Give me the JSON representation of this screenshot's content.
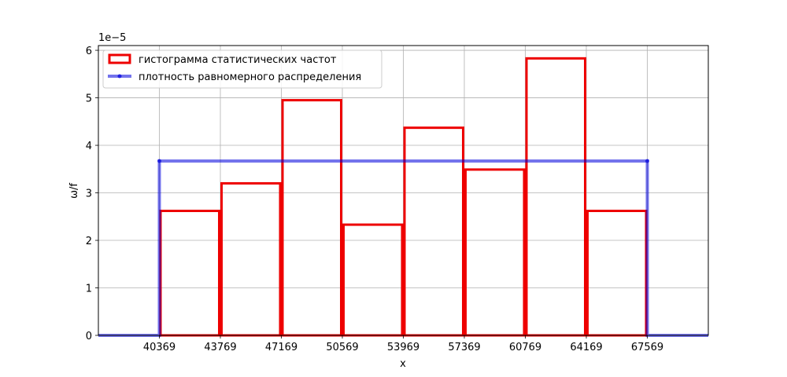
{
  "chart_data": {
    "type": "bar",
    "xlabel": "x",
    "ylabel": "ω/f",
    "y_offset_label": "1e−5",
    "xlim": [
      36969,
      70969
    ],
    "ylim": [
      0,
      6.1e-05
    ],
    "grid": true,
    "legend_placement": "top-left",
    "x_ticks": [
      "40369",
      "43769",
      "47169",
      "50569",
      "53969",
      "57369",
      "60769",
      "64169",
      "67569"
    ],
    "y_ticks": [
      "0",
      "1",
      "2",
      "3",
      "4",
      "5",
      "6"
    ],
    "series": [
      {
        "name": "гистограмма статистических частот",
        "kind": "histogram",
        "color": "#ee0000",
        "bin_edges": [
          40369,
          43769,
          47169,
          50569,
          53969,
          57369,
          60769,
          64169,
          67569
        ],
        "values": [
          2.62e-05,
          3.2e-05,
          4.95e-05,
          2.33e-05,
          4.37e-05,
          3.49e-05,
          5.83e-05,
          2.62e-05
        ]
      },
      {
        "name": "плотность равномерного распределения",
        "kind": "step-line",
        "color": "#0000dd",
        "x": [
          36969,
          40369,
          40369,
          67569,
          67569,
          70969
        ],
        "y": [
          0,
          0,
          3.67e-05,
          3.67e-05,
          0,
          0
        ]
      }
    ]
  }
}
